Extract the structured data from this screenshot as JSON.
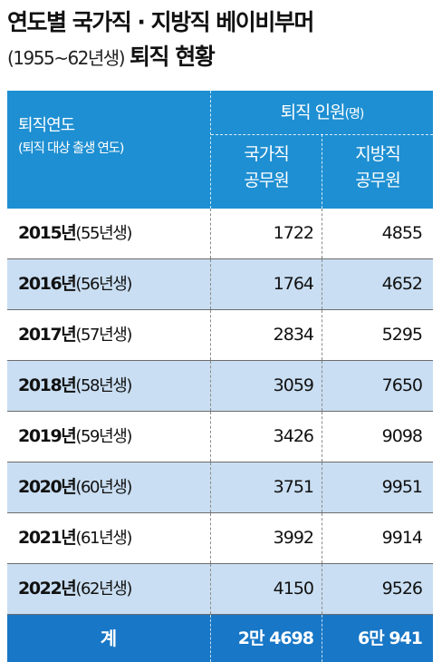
{
  "title": {
    "line1": "연도별 국가직 · 지방직 베이비부머",
    "line2_sub": "(1955~62년생)",
    "line2_main": "퇴직 현황"
  },
  "header": {
    "left_label": "퇴직연도",
    "left_sublabel": "(퇴직 대상 출생 연도)",
    "group_label": "퇴직 인원",
    "group_unit": "(명)",
    "col1_line1": "국가직",
    "col1_line2": "공무원",
    "col2_line1": "지방직",
    "col2_line2": "공무원"
  },
  "chart_data": {
    "type": "table",
    "columns": [
      "퇴직연도",
      "국가직 공무원",
      "지방직 공무원"
    ],
    "rows": [
      {
        "year": "2015년",
        "birth": "(55년생)",
        "national": "1722",
        "local": "4855"
      },
      {
        "year": "2016년",
        "birth": "(56년생)",
        "national": "1764",
        "local": "4652"
      },
      {
        "year": "2017년",
        "birth": "(57년생)",
        "national": "2834",
        "local": "5295"
      },
      {
        "year": "2018년",
        "birth": "(58년생)",
        "national": "3059",
        "local": "7650"
      },
      {
        "year": "2019년",
        "birth": "(59년생)",
        "national": "3426",
        "local": "9098"
      },
      {
        "year": "2020년",
        "birth": "(60년생)",
        "national": "3751",
        "local": "9951"
      },
      {
        "year": "2021년",
        "birth": "(61년생)",
        "national": "3992",
        "local": "9914"
      },
      {
        "year": "2022년",
        "birth": "(62년생)",
        "national": "4150",
        "local": "9526"
      }
    ],
    "total": {
      "label": "계",
      "national": "2만 4698",
      "local": "6만 941"
    }
  },
  "colors": {
    "header_blue": "#1e8fd2",
    "total_blue": "#1877c6",
    "alt_row": "#c9def2"
  }
}
